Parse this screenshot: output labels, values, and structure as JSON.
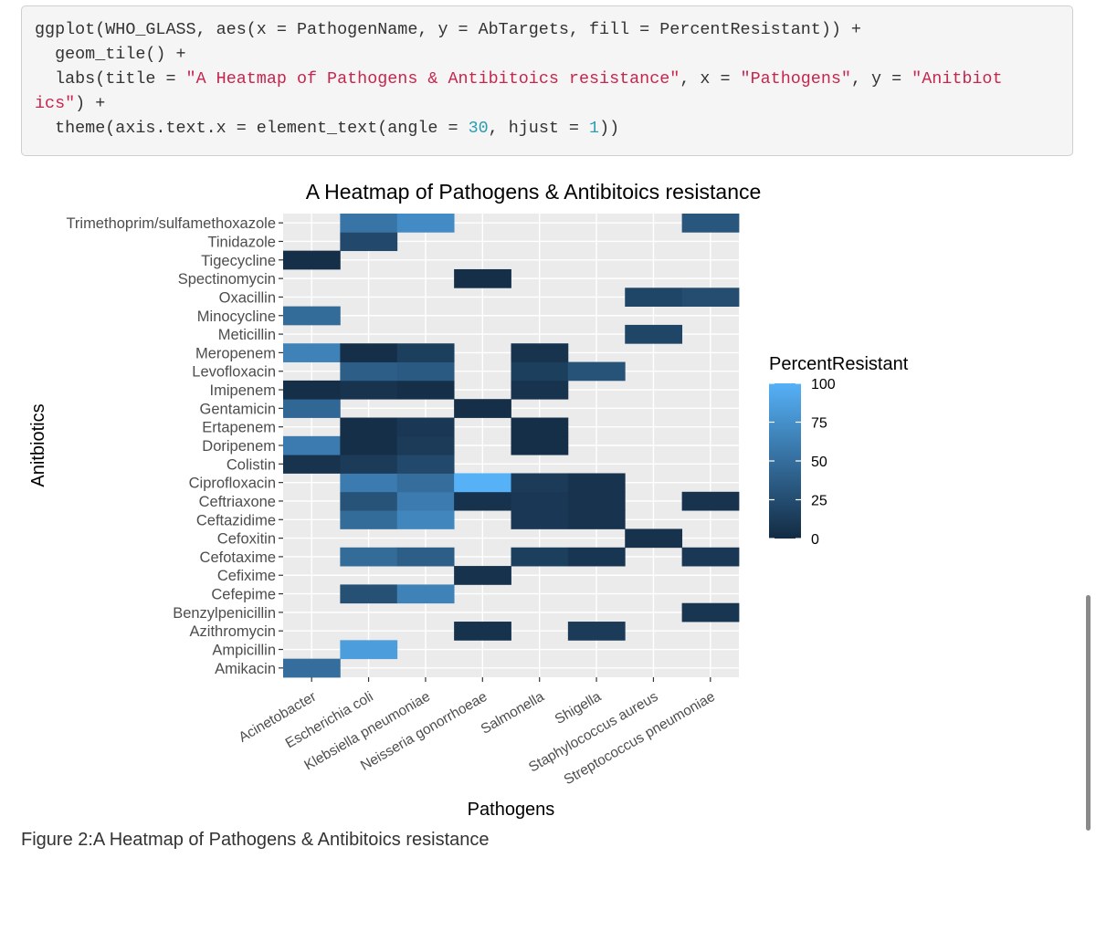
{
  "code_block": {
    "line1": "ggplot(WHO_GLASS, aes(x = PathogenName, y = AbTargets, fill = PercentResistant)) +",
    "line2": "  geom_tile() +",
    "line3a": "  labs(title = ",
    "line3b": "\"A Heatmap of Pathogens & Antibitoics resistance\"",
    "line3c": ", x = ",
    "line3d": "\"Pathogens\"",
    "line3e": ", y = ",
    "line3f": "\"Anitbiot",
    "line4a": "ics\"",
    "line4b": ") +",
    "line5a": "  theme(axis.text.x = element_text(angle = ",
    "line5b": "30",
    "line5c": ", hjust = ",
    "line5d": "1",
    "line5e": "))"
  },
  "caption": "Figure 2:A Heatmap of Pathogens & Antibitoics resistance",
  "chart_data": {
    "type": "heatmap",
    "title": "A Heatmap of Pathogens & Antibitoics resistance",
    "xlabel": "Pathogens",
    "ylabel": "Anitbiotics",
    "x_categories": [
      "Acinetobacter",
      "Escherichia coli",
      "Klebsiella pneumoniae",
      "Neisseria gonorrhoeae",
      "Salmonella",
      "Shigella",
      "Staphylococcus aureus",
      "Streptococcus pneumoniae"
    ],
    "y_categories": [
      "Amikacin",
      "Ampicillin",
      "Azithromycin",
      "Benzylpenicillin",
      "Cefepime",
      "Cefixime",
      "Cefotaxime",
      "Cefoxitin",
      "Ceftazidime",
      "Ceftriaxone",
      "Ciprofloxacin",
      "Colistin",
      "Doripenem",
      "Ertapenem",
      "Gentamicin",
      "Imipenem",
      "Levofloxacin",
      "Meropenem",
      "Meticillin",
      "Minocycline",
      "Oxacillin",
      "Spectinomycin",
      "Tigecycline",
      "Tinidazole",
      "Trimethoprim/sulfamethoxazole"
    ],
    "cells": [
      {
        "x": "Acinetobacter",
        "y": "Amikacin",
        "value": 50
      },
      {
        "x": "Escherichia coli",
        "y": "Ampicillin",
        "value": 85
      },
      {
        "x": "Neisseria gonorrhoeae",
        "y": "Azithromycin",
        "value": 5
      },
      {
        "x": "Shigella",
        "y": "Azithromycin",
        "value": 12
      },
      {
        "x": "Streptococcus pneumoniae",
        "y": "Benzylpenicillin",
        "value": 8
      },
      {
        "x": "Escherichia coli",
        "y": "Cefepime",
        "value": 28
      },
      {
        "x": "Klebsiella pneumoniae",
        "y": "Cefepime",
        "value": 65
      },
      {
        "x": "Neisseria gonorrhoeae",
        "y": "Cefixime",
        "value": 5
      },
      {
        "x": "Escherichia coli",
        "y": "Cefotaxime",
        "value": 48
      },
      {
        "x": "Klebsiella pneumoniae",
        "y": "Cefotaxime",
        "value": 38
      },
      {
        "x": "Salmonella",
        "y": "Cefotaxime",
        "value": 15
      },
      {
        "x": "Shigella",
        "y": "Cefotaxime",
        "value": 8
      },
      {
        "x": "Streptococcus pneumoniae",
        "y": "Cefotaxime",
        "value": 10
      },
      {
        "x": "Staphylococcus aureus",
        "y": "Cefoxitin",
        "value": 5
      },
      {
        "x": "Escherichia coli",
        "y": "Ceftazidime",
        "value": 48
      },
      {
        "x": "Klebsiella pneumoniae",
        "y": "Ceftazidime",
        "value": 68
      },
      {
        "x": "Salmonella",
        "y": "Ceftazidime",
        "value": 10
      },
      {
        "x": "Shigella",
        "y": "Ceftazidime",
        "value": 6
      },
      {
        "x": "Escherichia coli",
        "y": "Ceftriaxone",
        "value": 30
      },
      {
        "x": "Klebsiella pneumoniae",
        "y": "Ceftriaxone",
        "value": 60
      },
      {
        "x": "Neisseria gonorrhoeae",
        "y": "Ceftriaxone",
        "value": 5
      },
      {
        "x": "Salmonella",
        "y": "Ceftriaxone",
        "value": 10
      },
      {
        "x": "Shigella",
        "y": "Ceftriaxone",
        "value": 6
      },
      {
        "x": "Streptococcus pneumoniae",
        "y": "Ceftriaxone",
        "value": 6
      },
      {
        "x": "Escherichia coli",
        "y": "Ciprofloxacin",
        "value": 60
      },
      {
        "x": "Klebsiella pneumoniae",
        "y": "Ciprofloxacin",
        "value": 50
      },
      {
        "x": "Neisseria gonorrhoeae",
        "y": "Ciprofloxacin",
        "value": 100
      },
      {
        "x": "Salmonella",
        "y": "Ciprofloxacin",
        "value": 12
      },
      {
        "x": "Shigella",
        "y": "Ciprofloxacin",
        "value": 6
      },
      {
        "x": "Acinetobacter",
        "y": "Colistin",
        "value": 6
      },
      {
        "x": "Escherichia coli",
        "y": "Colistin",
        "value": 12
      },
      {
        "x": "Klebsiella pneumoniae",
        "y": "Colistin",
        "value": 22
      },
      {
        "x": "Acinetobacter",
        "y": "Doripenem",
        "value": 60
      },
      {
        "x": "Escherichia coli",
        "y": "Doripenem",
        "value": 3
      },
      {
        "x": "Klebsiella pneumoniae",
        "y": "Doripenem",
        "value": 12
      },
      {
        "x": "Salmonella",
        "y": "Doripenem",
        "value": 3
      },
      {
        "x": "Escherichia coli",
        "y": "Ertapenem",
        "value": 3
      },
      {
        "x": "Klebsiella pneumoniae",
        "y": "Ertapenem",
        "value": 10
      },
      {
        "x": "Salmonella",
        "y": "Ertapenem",
        "value": 3
      },
      {
        "x": "Acinetobacter",
        "y": "Gentamicin",
        "value": 45
      },
      {
        "x": "Neisseria gonorrhoeae",
        "y": "Gentamicin",
        "value": 3
      },
      {
        "x": "Acinetobacter",
        "y": "Imipenem",
        "value": 3
      },
      {
        "x": "Escherichia coli",
        "y": "Imipenem",
        "value": 6
      },
      {
        "x": "Klebsiella pneumoniae",
        "y": "Imipenem",
        "value": 3
      },
      {
        "x": "Salmonella",
        "y": "Imipenem",
        "value": 6
      },
      {
        "x": "Escherichia coli",
        "y": "Levofloxacin",
        "value": 38
      },
      {
        "x": "Klebsiella pneumoniae",
        "y": "Levofloxacin",
        "value": 35
      },
      {
        "x": "Salmonella",
        "y": "Levofloxacin",
        "value": 15
      },
      {
        "x": "Shigella",
        "y": "Levofloxacin",
        "value": 30
      },
      {
        "x": "Acinetobacter",
        "y": "Meropenem",
        "value": 65
      },
      {
        "x": "Escherichia coli",
        "y": "Meropenem",
        "value": 3
      },
      {
        "x": "Klebsiella pneumoniae",
        "y": "Meropenem",
        "value": 15
      },
      {
        "x": "Salmonella",
        "y": "Meropenem",
        "value": 6
      },
      {
        "x": "Staphylococcus aureus",
        "y": "Meticillin",
        "value": 20
      },
      {
        "x": "Acinetobacter",
        "y": "Minocycline",
        "value": 48
      },
      {
        "x": "Staphylococcus aureus",
        "y": "Oxacillin",
        "value": 20
      },
      {
        "x": "Streptococcus pneumoniae",
        "y": "Oxacillin",
        "value": 25
      },
      {
        "x": "Neisseria gonorrhoeae",
        "y": "Spectinomycin",
        "value": 3
      },
      {
        "x": "Acinetobacter",
        "y": "Tigecycline",
        "value": 3
      },
      {
        "x": "Escherichia coli",
        "y": "Tinidazole",
        "value": 22
      },
      {
        "x": "Escherichia coli",
        "y": "Trimethoprim/sulfamethoxazole",
        "value": 55
      },
      {
        "x": "Klebsiella pneumoniae",
        "y": "Trimethoprim/sulfamethoxazole",
        "value": 72
      },
      {
        "x": "Streptococcus pneumoniae",
        "y": "Trimethoprim/sulfamethoxazole",
        "value": 32
      }
    ],
    "legend": {
      "title": "PercentResistant",
      "ticks": [
        0,
        25,
        50,
        75,
        100
      ],
      "low_color": "#132B43",
      "high_color": "#56B1F7",
      "range": [
        0,
        100
      ],
      "placement": "right"
    },
    "colors": {
      "panel_background": "#EBEBEB",
      "grid": "#FFFFFF",
      "axis_text": "#4D4D4D",
      "axis_tick": "#333333"
    }
  }
}
